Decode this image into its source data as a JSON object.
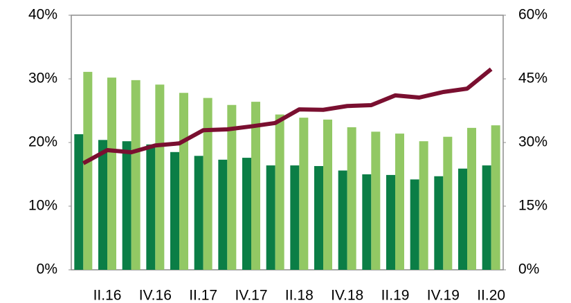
{
  "chart_data": {
    "type": "bar",
    "categories": [
      null,
      "II.16",
      null,
      "IV.16",
      null,
      "II.17",
      null,
      "IV.17",
      null,
      "II.18",
      null,
      "IV.18",
      null,
      "II.19",
      null,
      "IV.19",
      null,
      "II.20"
    ],
    "series": [
      {
        "color": "#0b7e46",
        "values": [
          21.3,
          20.4,
          20.2,
          19.7,
          18.5,
          17.9,
          17.3,
          17.6,
          16.4,
          16.4,
          16.3,
          15.6,
          15.0,
          14.9,
          14.2,
          14.7,
          15.9,
          16.4
        ]
      },
      {
        "color": "#92c864",
        "values": [
          31.1,
          30.2,
          29.8,
          29.1,
          27.8,
          27.0,
          25.9,
          26.4,
          24.4,
          23.9,
          23.6,
          22.4,
          21.7,
          21.4,
          20.2,
          20.9,
          22.3,
          22.7
        ]
      },
      {
        "color": "#7a0f30",
        "type": "line",
        "axis": "y2",
        "values": [
          25.1,
          28.2,
          27.7,
          29.3,
          29.8,
          32.9,
          33.1,
          33.8,
          34.6,
          37.8,
          37.7,
          38.6,
          38.8,
          41.1,
          40.6,
          41.9,
          42.7,
          47.3
        ]
      }
    ],
    "ylim": [
      0,
      40
    ],
    "yticks": [
      {
        "value": 0,
        "label": "0%"
      },
      {
        "value": 10,
        "label": "10%"
      },
      {
        "value": 20,
        "label": "20%"
      },
      {
        "value": 30,
        "label": "30%"
      },
      {
        "value": 40,
        "label": "40%"
      }
    ],
    "y2lim": [
      0,
      60
    ],
    "y2ticks": [
      {
        "value": 0,
        "label": "0%"
      },
      {
        "value": 15,
        "label": "15%"
      },
      {
        "value": 30,
        "label": "30%"
      },
      {
        "value": 45,
        "label": "45%"
      },
      {
        "value": 60,
        "label": "60%"
      }
    ]
  }
}
